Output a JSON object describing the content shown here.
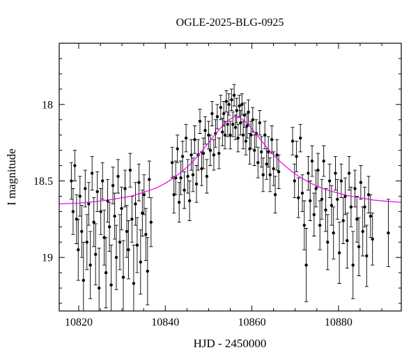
{
  "chart_data": {
    "type": "scatter",
    "title": "OGLE-2025-BLG-0925",
    "xlabel": "HJD - 2450000",
    "ylabel": "I magnitude",
    "xlim": [
      10815.5,
      10894.5
    ],
    "ylim_mag": [
      17.6,
      19.35
    ],
    "y_axis_inverted": true,
    "grid": false,
    "legend": "none",
    "point_color": "#000000",
    "error_bar_color": "#000000",
    "model_color": "#ee00ee",
    "frame_color": "#000000",
    "x_major_ticks": [
      {
        "v": 10820,
        "label": "10820"
      },
      {
        "v": 10840,
        "label": "10840"
      },
      {
        "v": 10860,
        "label": "10860"
      },
      {
        "v": 10880,
        "label": "10880"
      }
    ],
    "x_minor_step": 5,
    "y_major_ticks": [
      {
        "v": 18,
        "label": "18"
      },
      {
        "v": 18.5,
        "label": "18.5"
      },
      {
        "v": 19,
        "label": "19"
      }
    ],
    "y_minor_step": 0.1,
    "model_curve": [
      [
        10815.5,
        18.65
      ],
      [
        10820,
        18.645
      ],
      [
        10824,
        18.635
      ],
      [
        10828,
        18.62
      ],
      [
        10832,
        18.6
      ],
      [
        10835,
        18.575
      ],
      [
        10838,
        18.545
      ],
      [
        10840,
        18.515
      ],
      [
        10842,
        18.48
      ],
      [
        10844,
        18.435
      ],
      [
        10846,
        18.385
      ],
      [
        10848,
        18.32
      ],
      [
        10850,
        18.25
      ],
      [
        10851,
        18.215
      ],
      [
        10852,
        18.18
      ],
      [
        10853,
        18.145
      ],
      [
        10854,
        18.115
      ],
      [
        10855,
        18.095
      ],
      [
        10856,
        18.08
      ],
      [
        10857,
        18.085
      ],
      [
        10858,
        18.1
      ],
      [
        10859,
        18.125
      ],
      [
        10860,
        18.16
      ],
      [
        10861,
        18.195
      ],
      [
        10862,
        18.23
      ],
      [
        10863,
        18.265
      ],
      [
        10864,
        18.3
      ],
      [
        10865,
        18.33
      ],
      [
        10866,
        18.36
      ],
      [
        10868,
        18.41
      ],
      [
        10870,
        18.455
      ],
      [
        10872,
        18.49
      ],
      [
        10874,
        18.52
      ],
      [
        10876,
        18.545
      ],
      [
        10878,
        18.565
      ],
      [
        10880,
        18.58
      ],
      [
        10882,
        18.595
      ],
      [
        10884,
        18.605
      ],
      [
        10886,
        18.615
      ],
      [
        10888,
        18.625
      ],
      [
        10890,
        18.63
      ],
      [
        10892,
        18.635
      ],
      [
        10894.5,
        18.64
      ]
    ],
    "points": [
      [
        10818.3,
        18.5,
        0.12
      ],
      [
        10818.7,
        18.7,
        0.15
      ],
      [
        10819.1,
        18.4,
        0.1
      ],
      [
        10819.5,
        18.75,
        0.16
      ],
      [
        10819.9,
        18.95,
        0.2
      ],
      [
        10820.3,
        18.6,
        0.13
      ],
      [
        10820.7,
        18.83,
        0.17
      ],
      [
        10821.1,
        19.15,
        0.25
      ],
      [
        10821.5,
        18.55,
        0.12
      ],
      [
        10821.9,
        18.9,
        0.18
      ],
      [
        10822.3,
        18.65,
        0.14
      ],
      [
        10822.7,
        19.05,
        0.22
      ],
      [
        10823.1,
        18.45,
        0.11
      ],
      [
        10823.5,
        18.77,
        0.16
      ],
      [
        10823.9,
        18.98,
        0.2
      ],
      [
        10824.3,
        18.57,
        0.13
      ],
      [
        10824.7,
        19.2,
        0.26
      ],
      [
        10825.1,
        18.7,
        0.15
      ],
      [
        10825.5,
        18.5,
        0.12
      ],
      [
        10825.9,
        18.87,
        0.18
      ],
      [
        10826.3,
        19.1,
        0.23
      ],
      [
        10826.7,
        18.63,
        0.14
      ],
      [
        10827.1,
        18.8,
        0.16
      ],
      [
        10827.5,
        19.18,
        0.26
      ],
      [
        10827.9,
        18.53,
        0.12
      ],
      [
        10828.3,
        18.73,
        0.15
      ],
      [
        10828.7,
        19.0,
        0.21
      ],
      [
        10829.1,
        18.47,
        0.11
      ],
      [
        10829.5,
        18.9,
        0.18
      ],
      [
        10829.9,
        18.68,
        0.14
      ],
      [
        10830.3,
        19.13,
        0.24
      ],
      [
        10830.7,
        18.55,
        0.12
      ],
      [
        10831.1,
        18.83,
        0.17
      ],
      [
        10831.5,
        18.95,
        0.19
      ],
      [
        10831.9,
        18.43,
        0.11
      ],
      [
        10832.3,
        18.75,
        0.15
      ],
      [
        10832.7,
        19.17,
        0.25
      ],
      [
        10833.1,
        18.65,
        0.14
      ],
      [
        10833.5,
        18.92,
        0.18
      ],
      [
        10833.9,
        18.51,
        0.12
      ],
      [
        10834.3,
        19.03,
        0.21
      ],
      [
        10834.7,
        18.71,
        0.15
      ],
      [
        10835.1,
        18.59,
        0.13
      ],
      [
        10835.5,
        18.85,
        0.17
      ],
      [
        10835.9,
        19.09,
        0.22
      ],
      [
        10836.3,
        18.49,
        0.12
      ],
      [
        10836.7,
        18.77,
        0.16
      ],
      [
        10841.6,
        18.38,
        0.1
      ],
      [
        10842.0,
        18.59,
        0.12
      ],
      [
        10842.4,
        18.48,
        0.11
      ],
      [
        10842.8,
        18.29,
        0.09
      ],
      [
        10843.2,
        18.64,
        0.13
      ],
      [
        10843.6,
        18.48,
        0.11
      ],
      [
        10844.0,
        18.34,
        0.1
      ],
      [
        10844.4,
        18.56,
        0.12
      ],
      [
        10844.8,
        18.22,
        0.09
      ],
      [
        10845.2,
        18.47,
        0.11
      ],
      [
        10845.6,
        18.63,
        0.13
      ],
      [
        10846.0,
        18.33,
        0.1
      ],
      [
        10846.4,
        18.46,
        0.11
      ],
      [
        10846.8,
        18.23,
        0.09
      ],
      [
        10847.2,
        18.52,
        0.12
      ],
      [
        10847.6,
        18.33,
        0.1
      ],
      [
        10848.0,
        18.11,
        0.08
      ],
      [
        10848.4,
        18.42,
        0.11
      ],
      [
        10848.8,
        18.32,
        0.1
      ],
      [
        10849.2,
        18.17,
        0.09
      ],
      [
        10849.6,
        18.47,
        0.11
      ],
      [
        10850.0,
        18.2,
        0.09
      ],
      [
        10850.4,
        18.3,
        0.1
      ],
      [
        10850.8,
        18.06,
        0.08
      ],
      [
        10851.2,
        18.33,
        0.1
      ],
      [
        10851.6,
        18.19,
        0.09
      ],
      [
        10852.0,
        18.08,
        0.08
      ],
      [
        10852.4,
        18.32,
        0.1
      ],
      [
        10852.8,
        18.02,
        0.08
      ],
      [
        10853.2,
        18.18,
        0.09
      ],
      [
        10853.5,
        18.06,
        0.08
      ],
      [
        10853.8,
        18.2,
        0.09
      ],
      [
        10854.1,
        17.98,
        0.07
      ],
      [
        10854.4,
        18.13,
        0.08
      ],
      [
        10854.7,
        18.0,
        0.07
      ],
      [
        10855.0,
        18.2,
        0.09
      ],
      [
        10855.3,
        17.97,
        0.07
      ],
      [
        10855.6,
        18.13,
        0.08
      ],
      [
        10855.9,
        17.94,
        0.07
      ],
      [
        10856.2,
        18.15,
        0.08
      ],
      [
        10856.5,
        18.04,
        0.08
      ],
      [
        10856.8,
        18.22,
        0.09
      ],
      [
        10857.1,
        18.01,
        0.07
      ],
      [
        10857.4,
        18.12,
        0.08
      ],
      [
        10857.7,
        18.0,
        0.07
      ],
      [
        10858.0,
        18.2,
        0.09
      ],
      [
        10858.3,
        18.07,
        0.08
      ],
      [
        10858.6,
        18.24,
        0.09
      ],
      [
        10858.9,
        18.14,
        0.08
      ],
      [
        10859.2,
        18.05,
        0.08
      ],
      [
        10859.5,
        18.29,
        0.1
      ],
      [
        10859.8,
        18.2,
        0.09
      ],
      [
        10860.2,
        18.1,
        0.08
      ],
      [
        10860.6,
        18.3,
        0.1
      ],
      [
        10861.0,
        18.19,
        0.09
      ],
      [
        10861.4,
        18.38,
        0.1
      ],
      [
        10861.8,
        18.12,
        0.08
      ],
      [
        10862.2,
        18.31,
        0.1
      ],
      [
        10862.6,
        18.46,
        0.11
      ],
      [
        10863.0,
        18.2,
        0.09
      ],
      [
        10863.4,
        18.39,
        0.1
      ],
      [
        10863.8,
        18.31,
        0.1
      ],
      [
        10864.2,
        18.46,
        0.11
      ],
      [
        10864.6,
        18.23,
        0.09
      ],
      [
        10865.0,
        18.42,
        0.11
      ],
      [
        10865.4,
        18.59,
        0.12
      ],
      [
        10865.8,
        18.33,
        0.1
      ],
      [
        10866.2,
        18.44,
        0.11
      ],
      [
        10869.4,
        18.24,
        0.09
      ],
      [
        10869.85,
        18.5,
        0.11
      ],
      [
        10870.3,
        18.34,
        0.1
      ],
      [
        10870.75,
        18.61,
        0.13
      ],
      [
        10871.2,
        18.22,
        0.09
      ],
      [
        10871.65,
        18.58,
        0.12
      ],
      [
        10872.1,
        18.79,
        0.16
      ],
      [
        10872.55,
        19.05,
        0.24
      ],
      [
        10873.0,
        18.45,
        0.11
      ],
      [
        10873.45,
        18.63,
        0.13
      ],
      [
        10873.9,
        18.37,
        0.1
      ],
      [
        10874.35,
        18.72,
        0.14
      ],
      [
        10874.8,
        18.55,
        0.12
      ],
      [
        10875.25,
        18.43,
        0.11
      ],
      [
        10875.7,
        18.79,
        0.16
      ],
      [
        10876.15,
        18.62,
        0.13
      ],
      [
        10876.6,
        18.37,
        0.1
      ],
      [
        10877.05,
        18.69,
        0.14
      ],
      [
        10877.5,
        18.9,
        0.18
      ],
      [
        10877.95,
        18.5,
        0.11
      ],
      [
        10878.4,
        18.66,
        0.13
      ],
      [
        10878.85,
        18.84,
        0.17
      ],
      [
        10879.3,
        18.45,
        0.11
      ],
      [
        10879.75,
        18.62,
        0.13
      ],
      [
        10880.2,
        18.97,
        0.2
      ],
      [
        10880.65,
        18.5,
        0.11
      ],
      [
        10881.1,
        18.76,
        0.15
      ],
      [
        10881.55,
        18.6,
        0.12
      ],
      [
        10882.0,
        18.89,
        0.18
      ],
      [
        10882.45,
        18.45,
        0.11
      ],
      [
        10882.9,
        18.67,
        0.13
      ],
      [
        10883.35,
        19.05,
        0.22
      ],
      [
        10883.8,
        18.55,
        0.12
      ],
      [
        10884.25,
        18.75,
        0.15
      ],
      [
        10884.7,
        18.93,
        0.19
      ],
      [
        10885.15,
        18.51,
        0.11
      ],
      [
        10885.6,
        18.83,
        0.16
      ],
      [
        10886.05,
        18.67,
        0.13
      ],
      [
        10886.5,
        18.99,
        0.2
      ],
      [
        10886.95,
        18.59,
        0.12
      ],
      [
        10887.4,
        18.73,
        0.14
      ],
      [
        10887.85,
        18.88,
        0.17
      ],
      [
        10891.5,
        18.84,
        0.22
      ]
    ]
  }
}
